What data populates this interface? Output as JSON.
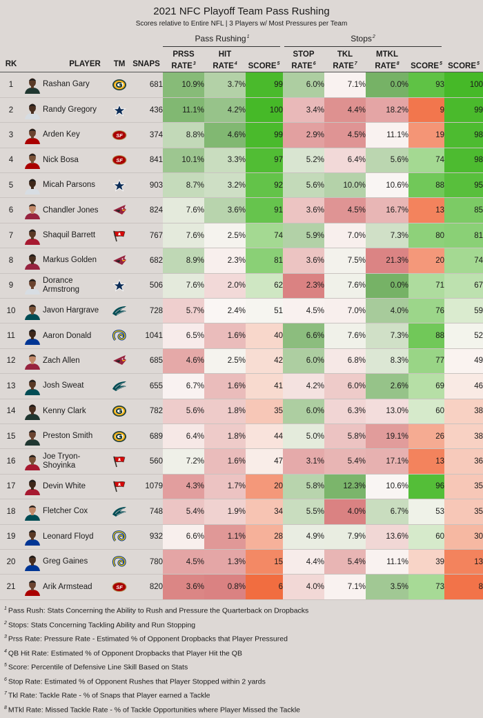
{
  "title": "2021 NFC Playoff Team Pass Rushing",
  "subtitle": "Scores relative to Entire NFL | 3 Players w/ Most Pressures per Team",
  "groups": {
    "pass_rushing": {
      "label": "Pass Rushing",
      "sup": "1"
    },
    "stops": {
      "label": "Stops",
      "sup": "2"
    }
  },
  "headers": {
    "rk": "RK",
    "player": "PLAYER",
    "tm": "TM",
    "snaps": "SNAPS",
    "prss_1": "PRSS",
    "prss_2": "RATE",
    "prss_sup": "3",
    "hit_1": "HIT",
    "hit_2": "RATE",
    "hit_sup": "4",
    "score_pr": "SCORE",
    "score_pr_sup": "5",
    "stop_1": "STOP",
    "stop_2": "RATE",
    "stop_sup": "6",
    "tkl_1": "TKL",
    "tkl_2": "RATE",
    "tkl_sup": "7",
    "mtkl_1": "MTKL",
    "mtkl_2": "RATE",
    "mtkl_sup": "8",
    "score_st": "SCORE",
    "score_st_sup": "5",
    "score_all": "SCORE",
    "score_all_sup": "5"
  },
  "team_icons": {
    "GB": "packers-logo-icon",
    "DAL": "cowboys-star-icon",
    "SF": "49ers-logo-icon",
    "ARI": "cardinals-logo-icon",
    "TB": "buccaneers-flag-icon",
    "PHI": "eagles-logo-icon",
    "LAR": "rams-horn-icon"
  },
  "rows": [
    {
      "rk": "1",
      "player": "Rashan Gary",
      "team": "GB",
      "snaps": "681",
      "prss": "10.9%",
      "hit": "3.7%",
      "score_pr": "99",
      "stop": "6.0%",
      "tkl": "7.1%",
      "mtkl": "0.0%",
      "score_st": "93",
      "score_all": "100"
    },
    {
      "rk": "2",
      "player": "Randy Gregory",
      "team": "DAL",
      "snaps": "436",
      "prss": "11.1%",
      "hit": "4.2%",
      "score_pr": "100",
      "stop": "3.4%",
      "tkl": "4.4%",
      "mtkl": "18.2%",
      "score_st": "9",
      "score_all": "99"
    },
    {
      "rk": "3",
      "player": "Arden Key",
      "team": "SF",
      "snaps": "374",
      "prss": "8.8%",
      "hit": "4.6%",
      "score_pr": "99",
      "stop": "2.9%",
      "tkl": "4.5%",
      "mtkl": "11.1%",
      "score_st": "19",
      "score_all": "98"
    },
    {
      "rk": "4",
      "player": "Nick Bosa",
      "team": "SF",
      "snaps": "841",
      "prss": "10.1%",
      "hit": "3.3%",
      "score_pr": "97",
      "stop": "5.2%",
      "tkl": "6.4%",
      "mtkl": "5.6%",
      "score_st": "74",
      "score_all": "98"
    },
    {
      "rk": "5",
      "player": "Micah Parsons",
      "team": "DAL",
      "snaps": "903",
      "prss": "8.7%",
      "hit": "3.2%",
      "score_pr": "92",
      "stop": "5.6%",
      "tkl": "10.0%",
      "mtkl": "10.6%",
      "score_st": "88",
      "score_all": "95"
    },
    {
      "rk": "6",
      "player": "Chandler Jones",
      "team": "ARI",
      "snaps": "824",
      "prss": "7.6%",
      "hit": "3.6%",
      "score_pr": "91",
      "stop": "3.6%",
      "tkl": "4.5%",
      "mtkl": "16.7%",
      "score_st": "13",
      "score_all": "85"
    },
    {
      "rk": "7",
      "player": "Shaquil Barrett",
      "team": "TB",
      "snaps": "767",
      "prss": "7.6%",
      "hit": "2.5%",
      "score_pr": "74",
      "stop": "5.9%",
      "tkl": "7.0%",
      "mtkl": "7.3%",
      "score_st": "80",
      "score_all": "81"
    },
    {
      "rk": "8",
      "player": "Markus Golden",
      "team": "ARI",
      "snaps": "682",
      "prss": "8.9%",
      "hit": "2.3%",
      "score_pr": "81",
      "stop": "3.6%",
      "tkl": "7.5%",
      "mtkl": "21.3%",
      "score_st": "20",
      "score_all": "74"
    },
    {
      "rk": "9",
      "player": "Dorance Armstrong",
      "team": "DAL",
      "snaps": "506",
      "prss": "7.6%",
      "hit": "2.0%",
      "score_pr": "62",
      "stop": "2.3%",
      "tkl": "7.6%",
      "mtkl": "0.0%",
      "score_st": "71",
      "score_all": "67"
    },
    {
      "rk": "10",
      "player": "Javon Hargrave",
      "team": "PHI",
      "snaps": "728",
      "prss": "5.7%",
      "hit": "2.4%",
      "score_pr": "51",
      "stop": "4.5%",
      "tkl": "7.0%",
      "mtkl": "4.0%",
      "score_st": "76",
      "score_all": "59"
    },
    {
      "rk": "11",
      "player": "Aaron Donald",
      "team": "LAR",
      "snaps": "1041",
      "prss": "6.5%",
      "hit": "1.6%",
      "score_pr": "40",
      "stop": "6.6%",
      "tkl": "7.6%",
      "mtkl": "7.3%",
      "score_st": "88",
      "score_all": "52"
    },
    {
      "rk": "12",
      "player": "Zach Allen",
      "team": "ARI",
      "snaps": "685",
      "prss": "4.6%",
      "hit": "2.5%",
      "score_pr": "42",
      "stop": "6.0%",
      "tkl": "6.8%",
      "mtkl": "8.3%",
      "score_st": "77",
      "score_all": "49"
    },
    {
      "rk": "13",
      "player": "Josh Sweat",
      "team": "PHI",
      "snaps": "655",
      "prss": "6.7%",
      "hit": "1.6%",
      "score_pr": "41",
      "stop": "4.2%",
      "tkl": "6.0%",
      "mtkl": "2.6%",
      "score_st": "69",
      "score_all": "46"
    },
    {
      "rk": "14",
      "player": "Kenny Clark",
      "team": "GB",
      "snaps": "782",
      "prss": "5.6%",
      "hit": "1.8%",
      "score_pr": "35",
      "stop": "6.0%",
      "tkl": "6.3%",
      "mtkl": "13.0%",
      "score_st": "60",
      "score_all": "38"
    },
    {
      "rk": "15",
      "player": "Preston Smith",
      "team": "GB",
      "snaps": "689",
      "prss": "6.4%",
      "hit": "1.8%",
      "score_pr": "44",
      "stop": "5.0%",
      "tkl": "5.8%",
      "mtkl": "19.1%",
      "score_st": "26",
      "score_all": "38"
    },
    {
      "rk": "16",
      "player": "Joe Tryon-Shoyinka",
      "team": "TB",
      "snaps": "560",
      "prss": "7.2%",
      "hit": "1.6%",
      "score_pr": "47",
      "stop": "3.1%",
      "tkl": "5.4%",
      "mtkl": "17.1%",
      "score_st": "13",
      "score_all": "36"
    },
    {
      "rk": "17",
      "player": "Devin White",
      "team": "TB",
      "snaps": "1079",
      "prss": "4.3%",
      "hit": "1.7%",
      "score_pr": "20",
      "stop": "5.8%",
      "tkl": "12.3%",
      "mtkl": "10.6%",
      "score_st": "96",
      "score_all": "35"
    },
    {
      "rk": "18",
      "player": "Fletcher Cox",
      "team": "PHI",
      "snaps": "748",
      "prss": "5.4%",
      "hit": "1.9%",
      "score_pr": "34",
      "stop": "5.5%",
      "tkl": "4.0%",
      "mtkl": "6.7%",
      "score_st": "53",
      "score_all": "35"
    },
    {
      "rk": "19",
      "player": "Leonard Floyd",
      "team": "LAR",
      "snaps": "932",
      "prss": "6.6%",
      "hit": "1.1%",
      "score_pr": "28",
      "stop": "4.9%",
      "tkl": "7.9%",
      "mtkl": "13.6%",
      "score_st": "60",
      "score_all": "30"
    },
    {
      "rk": "20",
      "player": "Greg Gaines",
      "team": "LAR",
      "snaps": "780",
      "prss": "4.5%",
      "hit": "1.3%",
      "score_pr": "15",
      "stop": "4.4%",
      "tkl": "5.4%",
      "mtkl": "11.1%",
      "score_st": "39",
      "score_all": "13"
    },
    {
      "rk": "21",
      "player": "Arik Armstead",
      "team": "SF",
      "snaps": "820",
      "prss": "3.6%",
      "hit": "0.8%",
      "score_pr": "6",
      "stop": "4.0%",
      "tkl": "7.1%",
      "mtkl": "3.5%",
      "score_st": "73",
      "score_all": "8"
    }
  ],
  "footnotes": [
    {
      "sup": "1",
      "text": "Pass Rush: Stats Concerning the Ability to Rush and Pressure the Quarterback on Dropbacks"
    },
    {
      "sup": "2",
      "text": "Stops: Stats Concerning Tackling Ability and Run Stopping"
    },
    {
      "sup": "3",
      "text": "Prss Rate: Pressure Rate - Estimated % of Opponent Dropbacks that Player Pressured"
    },
    {
      "sup": "4",
      "text": "QB Hit Rate: Estimated % of Opponent Dropbacks that Player Hit the QB"
    },
    {
      "sup": "5",
      "text": "Score: Percentile of Defensive Line Skill Based on Stats"
    },
    {
      "sup": "6",
      "text": "Stop Rate: Estimated % of Opponent Rushes that Player Stopped within 2 yards"
    },
    {
      "sup": "7",
      "text": "Tkl Rate: Tackle Rate - % of Snaps that Player earned a Tackle"
    },
    {
      "sup": "8",
      "text": "MTkl Rate: Missed Tackle Rate - % of Tackle Opportunities where Player Missed the Tackle"
    }
  ],
  "credit": "Data via @nflfastR & Pro Football Reference | Table by @bestballstats"
}
